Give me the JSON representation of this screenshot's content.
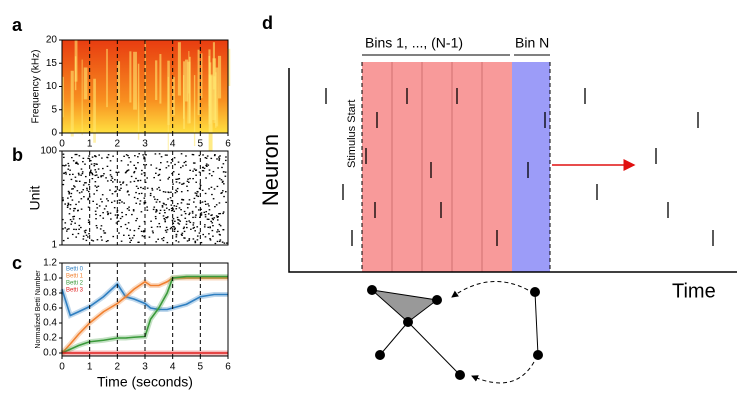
{
  "panel_labels": [
    "a",
    "b",
    "c",
    "d"
  ],
  "chart_data": [
    {
      "type": "heatmap",
      "ylabel": "Frequency (kHz)",
      "xlim": [
        0,
        6
      ],
      "xticks": [
        0,
        1,
        2,
        3,
        4,
        5,
        6
      ],
      "ylim": [
        0,
        20
      ],
      "yticks": [
        0,
        5,
        10,
        15,
        20
      ],
      "markers": [
        1,
        2,
        3,
        4,
        5
      ]
    },
    {
      "type": "raster",
      "ylabel": "Unit",
      "xlim": [
        0,
        6
      ],
      "ylim": [
        1,
        100
      ],
      "yticks": [
        1,
        100
      ],
      "markers": [
        1,
        2,
        3,
        4,
        5
      ]
    },
    {
      "type": "line",
      "ylabel": "Normalized Betti Number",
      "xlabel": "Time (seconds)",
      "xlim": [
        0,
        6
      ],
      "xticks": [
        0,
        1,
        2,
        3,
        4,
        5,
        6
      ],
      "ylim": [
        -0.04,
        1.2
      ],
      "yticks": [
        {
          "value": 0,
          "label": "0.0"
        },
        {
          "value": 0.2,
          "label": "0.2"
        },
        {
          "value": 0.4,
          "label": "0.4"
        },
        {
          "value": 0.6,
          "label": "0.6"
        },
        {
          "value": 0.8,
          "label": "0.8"
        },
        {
          "value": 1,
          "label": "1.0"
        },
        {
          "value": 1.2,
          "label": "1.2"
        }
      ],
      "markers": [
        1,
        2,
        3,
        4,
        5
      ],
      "x": [
        0,
        0.3,
        0.6,
        1,
        1.5,
        2,
        2.3,
        2.6,
        3,
        3.2,
        3.5,
        3.8,
        4,
        4.5,
        5,
        5.5,
        6
      ],
      "series": [
        {
          "name": "Betti 0",
          "color": "#2f7fc1",
          "values": [
            0.85,
            0.5,
            0.55,
            0.62,
            0.75,
            0.92,
            0.75,
            0.72,
            0.66,
            0.6,
            0.58,
            0.58,
            0.6,
            0.65,
            0.75,
            0.78,
            0.78
          ]
        },
        {
          "name": "Betti 1",
          "color": "#f08030",
          "values": [
            0,
            0.12,
            0.25,
            0.4,
            0.55,
            0.66,
            0.75,
            0.85,
            0.95,
            0.9,
            0.9,
            0.95,
            1.0,
            1.0,
            1.0,
            1.0,
            1.0
          ]
        },
        {
          "name": "Betti 2",
          "color": "#3a9a3a",
          "values": [
            0,
            0.05,
            0.1,
            0.15,
            0.17,
            0.2,
            0.2,
            0.21,
            0.22,
            0.45,
            0.6,
            0.8,
            1.0,
            1.02,
            1.02,
            1.02,
            1.02
          ]
        },
        {
          "name": "Betti 3",
          "color": "#e02020",
          "values": [
            0,
            0,
            0,
            0,
            0,
            0,
            0,
            0,
            0,
            0,
            0,
            0,
            0,
            0,
            0,
            0,
            0
          ]
        }
      ]
    }
  ],
  "diagram": {
    "bins_label": "Bins 1, ..., (N-1)",
    "bin_n_label": "Bin N",
    "stimulus_label": "Stimulus Start",
    "y_label": "Neuron",
    "x_label": "Time"
  }
}
